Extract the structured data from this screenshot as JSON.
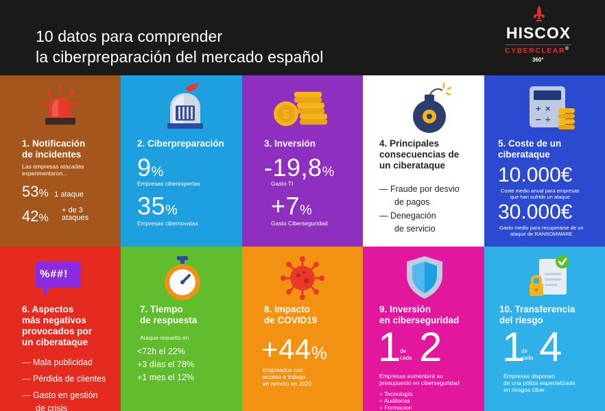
{
  "header": {
    "title_line1": "10 datos para comprender",
    "title_line2": "la ciberpreparación del mercado español",
    "logo": {
      "name": "HISCOX",
      "sub": "CYBERCLEAR",
      "reg": "®",
      "badge": "360°"
    }
  },
  "tiles": {
    "t1": {
      "heading_line1": "1. Notificación",
      "heading_line2": "de incidentes",
      "desc_line1": "Las empresas atacadas",
      "desc_line2": "experimentaron...",
      "stat1_value": "53",
      "stat1_label": "1 ataque",
      "stat2_value": "42",
      "stat2_label_line1": "+ de 3",
      "stat2_label_line2": "ataques",
      "pct": "%"
    },
    "t2": {
      "heading": "2. Ciberpreparación",
      "stat1_value": "9",
      "stat1_label": "Empresas ciberexpertas",
      "stat2_value": "35",
      "stat2_label": "Empresas cibernovatas",
      "pct": "%"
    },
    "t3": {
      "heading": "3. Inversión",
      "stat1_value": "-19,8",
      "stat1_label": "Gasto TI",
      "stat2_value": "+7",
      "stat2_label": "Gasto Ciberseguridad",
      "pct": "%"
    },
    "t4": {
      "heading_line1": "4. Principales",
      "heading_line2": "consecuencias de",
      "heading_line3": "un ciberataque",
      "item1_line1": "— Fraude por desvio",
      "item1_line2": "de pagos",
      "item2_line1": "— Denegación",
      "item2_line2": "de servicio"
    },
    "t5": {
      "heading_line1": "5. Coste de un",
      "heading_line2": "ciberataque",
      "stat1_value": "10.000€",
      "stat1_label_line1": "Coste medio anual para empresas",
      "stat1_label_line2": "que han sufrido un ataque",
      "stat2_value": "30.000€",
      "stat2_label_line1": "Gasto medio para recuperarse de un",
      "stat2_label_line2": "ataque de RANSOMWARE"
    },
    "t6": {
      "heading_line1": "6. Aspectos",
      "heading_line2": "más negativos",
      "heading_line3": "provocados por",
      "heading_line4": "un ciberataque",
      "item1": "— Mala publicidad",
      "item2": "— Pérdida de clientes",
      "item3_line1": "— Gasto en gestión",
      "item3_line2": "de crisis",
      "bubble_text": "%##!"
    },
    "t7": {
      "heading_line1": "7. Tiempo",
      "heading_line2": "de respuesta",
      "desc": "Ataque resuelto en",
      "item1": "<72h el 22%",
      "item2": "+3 días el 78%",
      "item3": "+1 mes el 12%"
    },
    "t8": {
      "heading_line1": "8. Impacto",
      "heading_line2": "de COVID19",
      "stat_value": "+44",
      "pct": "%",
      "desc_line1": "Empleados con",
      "desc_line2": "acceso a trabajo",
      "desc_line3": "en remoto en 2020"
    },
    "t9": {
      "heading_line1": "9. Inversión",
      "heading_line2": "en ciberseguridad",
      "num1": "1",
      "de": "de",
      "cada": "cada",
      "num2": "2",
      "desc_line1": "Empresas aumentará su",
      "desc_line2": "presupuesto en ciberseguridad",
      "item1": "+ Tecnología",
      "item2": "+ Auditorias",
      "item3": "+ Formacion"
    },
    "t10": {
      "heading_line1": "10. Transferencia",
      "heading_line2": "del riesgo",
      "num1": "1",
      "de": "de",
      "cada": "cada",
      "num2": "4",
      "desc_line1": "Empresas disponen",
      "desc_line2": "de una póliza especializada",
      "desc_line3": "en riesgos ciber"
    }
  },
  "icons": {
    "t1": "siren-icon",
    "t2": "knight-helmet-icon",
    "t3": "coins-icon",
    "t4": "bomb-icon",
    "t5": "calculator-icon",
    "t6": "speech-bubble-icon",
    "t7": "stopwatch-icon",
    "t8": "virus-icon",
    "t9": "shield-icon",
    "t10": "document-lock-icon"
  },
  "colors": {
    "t1": "#a5561d",
    "t2": "#1e9fe0",
    "t3": "#8e2fc0",
    "t4": "#ffffff",
    "t5": "#2c4ad0",
    "t6": "#e52a1f",
    "t7": "#5fbd2e",
    "t8": "#f39212",
    "t9": "#e3179e",
    "t10": "#2fb0e8",
    "brand_red": "#e03131"
  }
}
